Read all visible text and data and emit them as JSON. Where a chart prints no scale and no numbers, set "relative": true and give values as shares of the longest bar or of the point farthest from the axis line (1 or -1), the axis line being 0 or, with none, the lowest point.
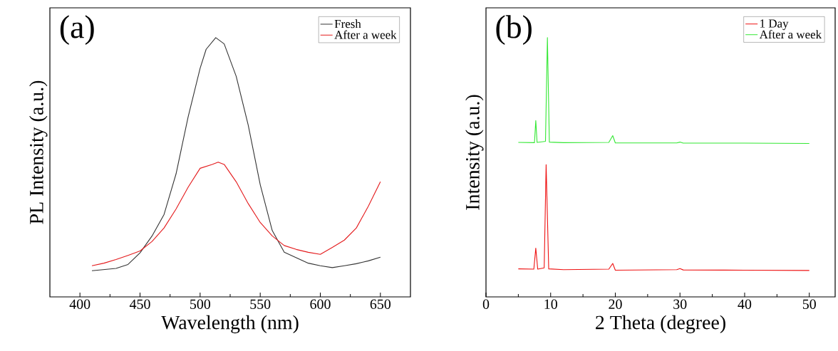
{
  "chart_data": [
    {
      "type": "line",
      "xlabel": "Wavelength (nm)",
      "ylabel": "PL Intensity (a.u.)",
      "annotations": [
        "(a)"
      ],
      "relative": true,
      "tick_labels": "x",
      "legend": "top right",
      "xlim": [
        375,
        675
      ],
      "xticks": [
        400,
        450,
        500,
        550,
        600,
        650
      ],
      "series": [
        {
          "name": "Fresh",
          "color": "#333333",
          "x": [
            410,
            430,
            440,
            450,
            460,
            470,
            480,
            490,
            500,
            505,
            513,
            520,
            530,
            540,
            550,
            560,
            570,
            580,
            590,
            600,
            610,
            620,
            630,
            640,
            650
          ],
          "values": [
            0.101,
            0.11,
            0.125,
            0.17,
            0.235,
            0.318,
            0.475,
            0.694,
            0.882,
            0.955,
            1.0,
            0.976,
            0.851,
            0.663,
            0.433,
            0.256,
            0.172,
            0.151,
            0.13,
            0.12,
            0.113,
            0.12,
            0.128,
            0.139,
            0.153
          ]
        },
        {
          "name": "After a week",
          "color": "#e41a1c",
          "x": [
            410,
            420,
            430,
            440,
            450,
            460,
            470,
            480,
            490,
            500,
            510,
            515,
            520,
            530,
            540,
            550,
            560,
            570,
            580,
            590,
            600,
            610,
            620,
            630,
            640,
            650
          ],
          "values": [
            0.12,
            0.13,
            0.144,
            0.16,
            0.177,
            0.214,
            0.266,
            0.339,
            0.423,
            0.496,
            0.511,
            0.52,
            0.511,
            0.444,
            0.36,
            0.287,
            0.235,
            0.198,
            0.183,
            0.172,
            0.164,
            0.191,
            0.219,
            0.266,
            0.35,
            0.444
          ]
        }
      ]
    },
    {
      "type": "line",
      "xlabel": "2 Theta (degree)",
      "ylabel": "Intensity (a.u.)",
      "annotations": [
        "(b)"
      ],
      "relative": true,
      "tick_labels": "x",
      "legend": "top right",
      "xlim": [
        0,
        54
      ],
      "xticks": [
        0,
        10,
        20,
        30,
        40,
        50
      ],
      "series": [
        {
          "name": "1 Day",
          "color": "#ee1111",
          "x": [
            5,
            7.4,
            7.7,
            8.0,
            9.0,
            9.3,
            9.7,
            12,
            19,
            19.6,
            20,
            29.5,
            30,
            30.5,
            40,
            50
          ],
          "values": [
            0.108,
            0.107,
            0.188,
            0.107,
            0.112,
            0.51,
            0.108,
            0.105,
            0.107,
            0.129,
            0.103,
            0.105,
            0.109,
            0.104,
            0.103,
            0.102
          ]
        },
        {
          "name": "After a week",
          "color": "#33e833",
          "x": [
            5,
            7.5,
            7.7,
            7.9,
            9.2,
            9.5,
            9.8,
            12,
            19,
            19.6,
            20,
            29.5,
            30,
            30.5,
            40,
            50
          ],
          "values": [
            0.596,
            0.595,
            0.68,
            0.596,
            0.6,
            1.0,
            0.597,
            0.595,
            0.596,
            0.622,
            0.594,
            0.594,
            0.597,
            0.593,
            0.593,
            0.592
          ]
        }
      ]
    }
  ]
}
